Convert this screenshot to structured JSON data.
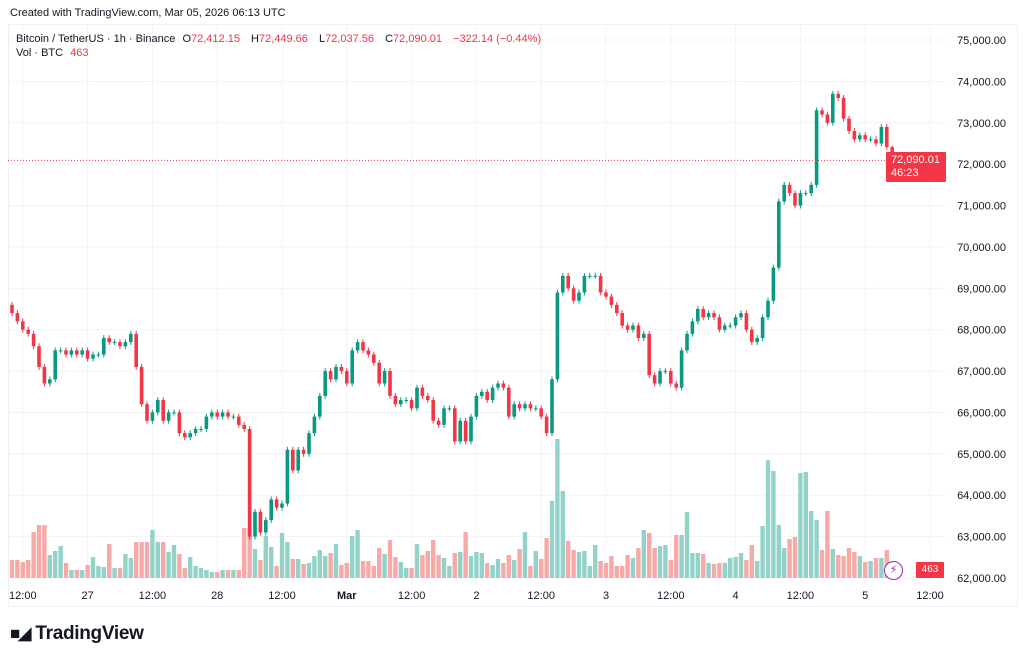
{
  "header": {
    "created": "Created with TradingView.com, Mar 05, 2026 06:13 UTC"
  },
  "legend": {
    "symbol": "Bitcoin / TetherUS · 1h · Binance",
    "o_label": "O",
    "o": "72,412.15",
    "h_label": "H",
    "h": "72,449.66",
    "l_label": "L",
    "l": "72,037.56",
    "c_label": "C",
    "c": "72,090.01",
    "change": "−322.14 (−0.44%)",
    "vol_label": "Vol · BTC",
    "vol": "463"
  },
  "price_label": {
    "price": "72,090.01",
    "countdown": "46:23"
  },
  "volume_label": "463",
  "logo": {
    "text": "TradingView",
    "mark": "TV"
  },
  "colors": {
    "up": "#089981",
    "down": "#f23645",
    "up_volume": "#92d2c8",
    "down_volume": "#f7a9a7",
    "last_price_line": "#f23645",
    "alert_icon": "#9c27b0"
  },
  "icons": {
    "alert": "lightning-icon"
  },
  "chart_data": {
    "type": "candlestick",
    "interval": "1h",
    "ylim": [
      62000,
      75000
    ],
    "y_ticks": [
      "62,000.00",
      "63,000.00",
      "64,000.00",
      "65,000.00",
      "66,000.00",
      "67,000.00",
      "68,000.00",
      "69,000.00",
      "70,000.00",
      "71,000.00",
      "72,000.00",
      "73,000.00",
      "74,000.00",
      "75,000.00"
    ],
    "y_tick_values": [
      62000,
      63000,
      64000,
      65000,
      66000,
      67000,
      68000,
      69000,
      70000,
      71000,
      72000,
      73000,
      74000,
      75000
    ],
    "x_ticks": [
      {
        "label": "12:00",
        "candle": 2
      },
      {
        "label": "27",
        "candle": 14
      },
      {
        "label": "12:00",
        "candle": 26
      },
      {
        "label": "28",
        "candle": 38
      },
      {
        "label": "12:00",
        "candle": 50
      },
      {
        "label": "Mar",
        "candle": 62,
        "bold": true
      },
      {
        "label": "12:00",
        "candle": 74
      },
      {
        "label": "2",
        "candle": 86
      },
      {
        "label": "12:00",
        "candle": 98
      },
      {
        "label": "3",
        "candle": 110
      },
      {
        "label": "12:00",
        "candle": 122
      },
      {
        "label": "4",
        "candle": 134
      },
      {
        "label": "12:00",
        "candle": 146
      },
      {
        "label": "5",
        "candle": 158
      },
      {
        "label": "12:00",
        "candle": 170
      }
    ],
    "first_open": 68600,
    "last_candle": {
      "open": 72412.15,
      "high": 72449.66,
      "low": 72037.56,
      "close": 72090.01
    },
    "close": [
      68400,
      68200,
      68000,
      67900,
      67600,
      67100,
      66700,
      66800,
      67500,
      67500,
      67400,
      67500,
      67400,
      67500,
      67300,
      67400,
      67400,
      67800,
      67700,
      67700,
      67600,
      67700,
      67900,
      67100,
      66200,
      65800,
      66000,
      66300,
      65800,
      66000,
      66000,
      65500,
      65400,
      65500,
      65600,
      65600,
      65900,
      66000,
      65900,
      66000,
      65900,
      65900,
      65700,
      65600,
      63000,
      63600,
      63100,
      63400,
      63900,
      63700,
      63800,
      65100,
      64600,
      65100,
      65000,
      65500,
      65900,
      66400,
      67000,
      66800,
      67100,
      67000,
      66700,
      67500,
      67700,
      67500,
      67400,
      67200,
      66700,
      67000,
      66400,
      66200,
      66300,
      66300,
      66100,
      66600,
      66400,
      66300,
      65800,
      65700,
      66100,
      66100,
      65300,
      65800,
      65300,
      65900,
      66400,
      66500,
      66300,
      66600,
      66700,
      66600,
      65900,
      66200,
      66100,
      66200,
      66100,
      66100,
      65900,
      65500,
      66800,
      68900,
      69300,
      69000,
      68700,
      68900,
      69300,
      69300,
      69300,
      68900,
      68800,
      68600,
      68400,
      68100,
      68000,
      68100,
      67800,
      67900,
      66900,
      66700,
      67000,
      67000,
      66700,
      66600,
      67500,
      67900,
      68200,
      68500,
      68300,
      68400,
      68300,
      68000,
      68100,
      68100,
      68300,
      68400,
      68000,
      67700,
      67800,
      68300,
      68700,
      69500,
      71100,
      71500,
      71300,
      71000,
      71300,
      71300,
      71500,
      73300,
      73200,
      73000,
      73700,
      73600,
      73100,
      72800,
      72600,
      72700,
      72600,
      72600,
      72500,
      72900,
      72412.15,
      72090.01
    ],
    "volume": [
      828,
      828,
      736,
      828,
      2116,
      2438,
      2438,
      1058,
      1242,
      1472,
      690,
      368,
      368,
      368,
      598,
      966,
      552,
      506,
      1564,
      460,
      460,
      1104,
      920,
      1656,
      1656,
      1656,
      2208,
      1656,
      1656,
      1196,
      1518,
      1104,
      460,
      966,
      552,
      460,
      368,
      276,
      276,
      368,
      368,
      368,
      368,
      2300,
      2300,
      1334,
      828,
      1932,
      1426,
      552,
      2070,
      1656,
      874,
      874,
      644,
      690,
      1012,
      1288,
      1012,
      1150,
      1564,
      598,
      690,
      1932,
      2208,
      782,
      782,
      552,
      1380,
      1104,
      1748,
      966,
      736,
      460,
      460,
      1564,
      1058,
      1242,
      1748,
      1058,
      920,
      552,
      1150,
      1196,
      2116,
      1012,
      1196,
      1150,
      690,
      598,
      874,
      690,
      1058,
      828,
      1334,
      2116,
      552,
      1242,
      874,
      1840,
      3542,
      6394,
      4002,
      1702,
      1288,
      1196,
      1242,
      552,
      1518,
      782,
      690,
      1012,
      552,
      552,
      1058,
      920,
      1380,
      2208,
      2070,
      1380,
      1472,
      1518,
      828,
      1978,
      1978,
      3036,
      1150,
      1150,
      1104,
      690,
      644,
      690,
      690,
      920,
      966,
      1150,
      828,
      1518,
      782,
      2392,
      5428,
      4922,
      2438,
      1380,
      1794,
      1886,
      4830,
      4876,
      3082,
      2668,
      1288,
      3082,
      1334,
      1058,
      1012,
      1380,
      1196,
      1012,
      736,
      782,
      920,
      920,
      1288,
      463
    ]
  }
}
